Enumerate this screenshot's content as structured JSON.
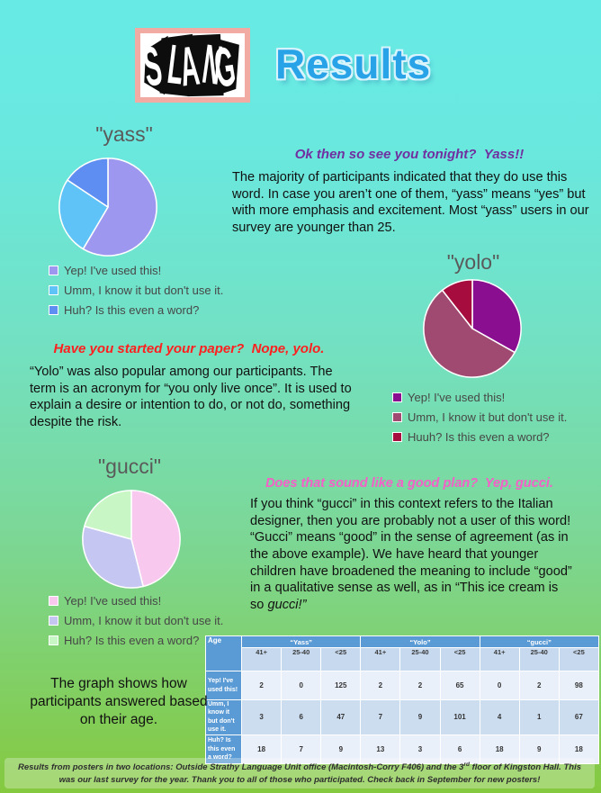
{
  "page": {
    "logo_text": "SLANG",
    "title": "Results",
    "title_color": "#29a3e8",
    "background_top_color": "#67eae5",
    "background_bottom_color": "#85c93f"
  },
  "sections": {
    "yass": {
      "title": "\"yass\"",
      "tagline": {
        "question": "Ok then so see you tonight?  ",
        "answer": "Yass!!",
        "color": "#7030a0"
      },
      "body": "The majority of participants indicated that they do use this word. In case you aren’t one of them, “yass” means “yes” but with more emphasis and excitement. Most “yass” users in our survey are younger than 25.",
      "body_em": ""
    },
    "yolo": {
      "title": "\"yolo\"",
      "tagline": {
        "question": "Have you started your paper?  Nope, ",
        "answer": "yolo.",
        "color": "#fe1f1f"
      },
      "body": "“Yolo” was also popular among our participants. The term is an acronym for “you only live once”. It is used to explain a desire or intention to do, or not do, something despite the risk.",
      "body_em": ""
    },
    "gucci": {
      "title": "\"gucci\"",
      "tagline": {
        "question": "Does that sound like a good plan?  Yep, ",
        "answer": "gucci.",
        "color": "#f45fc8"
      },
      "body": "If you think “gucci” in this context refers to the Italian designer, then you are probably not a user of this word! “Gucci” means “good” in the sense of agreement (as in the above example). We have heard that younger children have broadened the meaning to include “good” in a qualitative sense as well, as in “This ice cream is so ",
      "body_em": "gucci!”"
    }
  },
  "chart_data": [
    {
      "type": "pie",
      "title": "\"yass\"",
      "legend": [
        "Yep! I've used this!",
        "Umm, I know it but don't use it.",
        "Huh? Is this even a word?"
      ],
      "values": [
        127,
        56,
        34
      ],
      "percents": [
        58.5,
        25.8,
        15.7
      ],
      "colors": [
        "#9d97f0",
        "#5fc3f8",
        "#5e8ef2"
      ],
      "legend_position": "bottom-left",
      "start_angle_deg": 0
    },
    {
      "type": "pie",
      "title": "\"yolo\"",
      "legend": [
        "Yep! I've used this!",
        "Umm, I know it but don't use it.",
        "Huuh? Is this even a word?"
      ],
      "values": [
        69,
        117,
        22
      ],
      "percents": [
        33.2,
        56.2,
        10.6
      ],
      "colors": [
        "#8a0e90",
        "#a04a72",
        "#a60c3e"
      ],
      "legend_position": "bottom-left",
      "start_angle_deg": 0
    },
    {
      "type": "pie",
      "title": "\"gucci\"",
      "legend": [
        "Yep! I've used this!",
        "Umm, I know it but don't use it.",
        "Huh? Is this even a word?"
      ],
      "values": [
        100,
        72,
        45
      ],
      "percents": [
        46.1,
        33.2,
        20.7
      ],
      "colors": [
        "#f8c8ee",
        "#c5c6f2",
        "#c8f6c5"
      ],
      "legend_position": "bottom-left",
      "start_angle_deg": 0
    }
  ],
  "table": {
    "age_label": "Age",
    "groups": [
      "“Yass”",
      "“Yolo”",
      "“gucci”"
    ],
    "age_cols": [
      "41+",
      "25-40",
      "<25"
    ],
    "rows": [
      {
        "label": "Yep! I've used this!",
        "values": [
          2,
          0,
          125,
          2,
          2,
          65,
          0,
          2,
          98
        ]
      },
      {
        "label": "Umm, I know it but don't use it.",
        "values": [
          3,
          6,
          47,
          7,
          9,
          101,
          4,
          1,
          67
        ]
      },
      {
        "label": "Huh? Is this even a word?",
        "values": [
          18,
          7,
          9,
          13,
          3,
          6,
          18,
          9,
          18
        ]
      }
    ],
    "header_color": "#5b9bd5"
  },
  "caption": "The graph shows how participants answered based on their age.",
  "footer": {
    "part1": "Results from posters in two locations: Outside Strathy Language Unit office (Macintosh-Corry F406) and the 3",
    "sup": "rd",
    "part2": " floor of Kingston Hall. This was our last survey for the year. Thank you to all of those who participated. Check back in September for new posters!"
  }
}
